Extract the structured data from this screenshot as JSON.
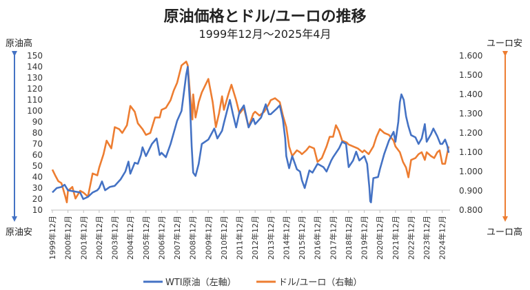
{
  "chart_data": {
    "type": "line",
    "title": "原油価格とドル/ユーロの推移",
    "subtitle": "1999年12月～2025年4月",
    "left_axis": {
      "top_label": "原油高",
      "bottom_label": "原油安",
      "ticks": [
        "10",
        "20",
        "30",
        "40",
        "50",
        "60",
        "70",
        "80",
        "90",
        "100",
        "110",
        "120",
        "130",
        "140",
        "150"
      ],
      "ylim": [
        10,
        150
      ],
      "arrow_color": "#4472C4"
    },
    "right_axis": {
      "top_label": "ユーロ安",
      "bottom_label": "ユーロ高",
      "ticks": [
        "0.800",
        "0.900",
        "1.000",
        "1.100",
        "1.200",
        "1.300",
        "1.400",
        "1.500",
        "1.600"
      ],
      "ylim": [
        0.8,
        1.6
      ],
      "arrow_color": "#ED7D31"
    },
    "x_ticks": [
      "1999年12月",
      "2000年12月",
      "2001年12月",
      "2002年12月",
      "2003年12月",
      "2004年12月",
      "2005年12月",
      "2006年12月",
      "2007年12月",
      "2008年12月",
      "2009年12月",
      "2010年12月",
      "2011年12月",
      "2012年12月",
      "2013年12月",
      "2014年12月",
      "2015年12月",
      "2016年12月",
      "2017年12月",
      "2018年12月",
      "2019年12月",
      "2020年12月",
      "2021年12月",
      "2022年12月",
      "2023年12月",
      "2024年12月"
    ],
    "grid": false,
    "legend_position": "bottom",
    "series": [
      {
        "name": "WTI原油（左軸）",
        "axis": "left",
        "color": "#4472C4",
        "points": [
          [
            1999.92,
            26
          ],
          [
            2000.2,
            30
          ],
          [
            2000.5,
            31
          ],
          [
            2000.7,
            33
          ],
          [
            2000.92,
            28
          ],
          [
            2001.3,
            27
          ],
          [
            2001.7,
            26
          ],
          [
            2001.9,
            20
          ],
          [
            2002.2,
            22
          ],
          [
            2002.5,
            26
          ],
          [
            2002.8,
            28
          ],
          [
            2002.92,
            30
          ],
          [
            2003.1,
            36
          ],
          [
            2003.3,
            28
          ],
          [
            2003.6,
            31
          ],
          [
            2003.92,
            32
          ],
          [
            2004.3,
            38
          ],
          [
            2004.6,
            45
          ],
          [
            2004.8,
            54
          ],
          [
            2004.92,
            43
          ],
          [
            2005.2,
            53
          ],
          [
            2005.4,
            52
          ],
          [
            2005.6,
            60
          ],
          [
            2005.7,
            67
          ],
          [
            2005.92,
            59
          ],
          [
            2006.3,
            70
          ],
          [
            2006.6,
            75
          ],
          [
            2006.8,
            60
          ],
          [
            2006.92,
            62
          ],
          [
            2007.2,
            58
          ],
          [
            2007.5,
            70
          ],
          [
            2007.8,
            85
          ],
          [
            2007.92,
            91
          ],
          [
            2008.2,
            100
          ],
          [
            2008.5,
            133
          ],
          [
            2008.6,
            140
          ],
          [
            2008.75,
            104
          ],
          [
            2008.85,
            68
          ],
          [
            2008.95,
            44
          ],
          [
            2009.1,
            41
          ],
          [
            2009.3,
            52
          ],
          [
            2009.5,
            70
          ],
          [
            2009.92,
            74
          ],
          [
            2010.3,
            84
          ],
          [
            2010.5,
            75
          ],
          [
            2010.8,
            82
          ],
          [
            2010.92,
            89
          ],
          [
            2011.3,
            110
          ],
          [
            2011.5,
            97
          ],
          [
            2011.7,
            85
          ],
          [
            2011.92,
            99
          ],
          [
            2012.2,
            105
          ],
          [
            2012.5,
            85
          ],
          [
            2012.8,
            93
          ],
          [
            2012.92,
            88
          ],
          [
            2013.3,
            94
          ],
          [
            2013.6,
            106
          ],
          [
            2013.8,
            97
          ],
          [
            2013.92,
            97
          ],
          [
            2014.3,
            102
          ],
          [
            2014.5,
            105
          ],
          [
            2014.7,
            92
          ],
          [
            2014.85,
            75
          ],
          [
            2014.92,
            59
          ],
          [
            2015.1,
            48
          ],
          [
            2015.3,
            59
          ],
          [
            2015.6,
            47
          ],
          [
            2015.8,
            45
          ],
          [
            2015.92,
            37
          ],
          [
            2016.1,
            30
          ],
          [
            2016.4,
            46
          ],
          [
            2016.6,
            44
          ],
          [
            2016.92,
            52
          ],
          [
            2017.3,
            49
          ],
          [
            2017.5,
            45
          ],
          [
            2017.8,
            55
          ],
          [
            2017.92,
            58
          ],
          [
            2018.3,
            66
          ],
          [
            2018.5,
            72
          ],
          [
            2018.75,
            70
          ],
          [
            2018.85,
            57
          ],
          [
            2018.92,
            49
          ],
          [
            2019.2,
            55
          ],
          [
            2019.4,
            63
          ],
          [
            2019.6,
            55
          ],
          [
            2019.92,
            59
          ],
          [
            2020.1,
            52
          ],
          [
            2020.25,
            30
          ],
          [
            2020.3,
            18
          ],
          [
            2020.35,
            17
          ],
          [
            2020.5,
            39
          ],
          [
            2020.8,
            40
          ],
          [
            2020.92,
            47
          ],
          [
            2021.2,
            61
          ],
          [
            2021.5,
            73
          ],
          [
            2021.8,
            81
          ],
          [
            2021.92,
            72
          ],
          [
            2022.1,
            90
          ],
          [
            2022.2,
            108
          ],
          [
            2022.3,
            115
          ],
          [
            2022.45,
            110
          ],
          [
            2022.6,
            95
          ],
          [
            2022.75,
            86
          ],
          [
            2022.92,
            78
          ],
          [
            2023.2,
            76
          ],
          [
            2023.4,
            70
          ],
          [
            2023.6,
            75
          ],
          [
            2023.8,
            88
          ],
          [
            2023.92,
            72
          ],
          [
            2024.2,
            79
          ],
          [
            2024.35,
            84
          ],
          [
            2024.6,
            77
          ],
          [
            2024.8,
            70
          ],
          [
            2024.92,
            70
          ],
          [
            2025.1,
            74
          ],
          [
            2025.25,
            68
          ],
          [
            2025.33,
            62
          ]
        ]
      },
      {
        "name": "ドル/ユーロ（右軸）",
        "axis": "right",
        "color": "#ED7D31",
        "points": [
          [
            1999.92,
            1.01
          ],
          [
            2000.1,
            0.98
          ],
          [
            2000.3,
            0.95
          ],
          [
            2000.5,
            0.94
          ],
          [
            2000.75,
            0.87
          ],
          [
            2000.85,
            0.84
          ],
          [
            2000.92,
            0.9
          ],
          [
            2001.2,
            0.92
          ],
          [
            2001.4,
            0.86
          ],
          [
            2001.7,
            0.9
          ],
          [
            2001.92,
            0.89
          ],
          [
            2002.2,
            0.87
          ],
          [
            2002.5,
            0.99
          ],
          [
            2002.8,
            0.98
          ],
          [
            2002.92,
            1.02
          ],
          [
            2003.2,
            1.09
          ],
          [
            2003.4,
            1.16
          ],
          [
            2003.7,
            1.12
          ],
          [
            2003.92,
            1.23
          ],
          [
            2004.2,
            1.22
          ],
          [
            2004.4,
            1.2
          ],
          [
            2004.7,
            1.24
          ],
          [
            2004.92,
            1.34
          ],
          [
            2005.2,
            1.31
          ],
          [
            2005.4,
            1.25
          ],
          [
            2005.7,
            1.22
          ],
          [
            2005.92,
            1.19
          ],
          [
            2006.2,
            1.2
          ],
          [
            2006.5,
            1.28
          ],
          [
            2006.8,
            1.28
          ],
          [
            2006.92,
            1.32
          ],
          [
            2007.2,
            1.33
          ],
          [
            2007.5,
            1.37
          ],
          [
            2007.7,
            1.42
          ],
          [
            2007.92,
            1.46
          ],
          [
            2008.2,
            1.55
          ],
          [
            2008.5,
            1.57
          ],
          [
            2008.6,
            1.55
          ],
          [
            2008.75,
            1.4
          ],
          [
            2008.9,
            1.27
          ],
          [
            2008.95,
            1.4
          ],
          [
            2009.1,
            1.28
          ],
          [
            2009.3,
            1.36
          ],
          [
            2009.5,
            1.41
          ],
          [
            2009.92,
            1.48
          ],
          [
            2010.2,
            1.36
          ],
          [
            2010.4,
            1.23
          ],
          [
            2010.6,
            1.3
          ],
          [
            2010.8,
            1.39
          ],
          [
            2010.92,
            1.32
          ],
          [
            2011.2,
            1.4
          ],
          [
            2011.4,
            1.45
          ],
          [
            2011.7,
            1.37
          ],
          [
            2011.92,
            1.3
          ],
          [
            2012.2,
            1.33
          ],
          [
            2012.5,
            1.23
          ],
          [
            2012.8,
            1.3
          ],
          [
            2012.92,
            1.31
          ],
          [
            2013.2,
            1.29
          ],
          [
            2013.5,
            1.31
          ],
          [
            2013.8,
            1.35
          ],
          [
            2013.92,
            1.37
          ],
          [
            2014.2,
            1.38
          ],
          [
            2014.5,
            1.36
          ],
          [
            2014.7,
            1.29
          ],
          [
            2014.85,
            1.25
          ],
          [
            2014.92,
            1.23
          ],
          [
            2015.1,
            1.13
          ],
          [
            2015.3,
            1.08
          ],
          [
            2015.6,
            1.11
          ],
          [
            2015.8,
            1.1
          ],
          [
            2015.92,
            1.09
          ],
          [
            2016.2,
            1.11
          ],
          [
            2016.4,
            1.13
          ],
          [
            2016.7,
            1.12
          ],
          [
            2016.92,
            1.05
          ],
          [
            2017.2,
            1.07
          ],
          [
            2017.5,
            1.13
          ],
          [
            2017.7,
            1.18
          ],
          [
            2017.92,
            1.18
          ],
          [
            2018.1,
            1.24
          ],
          [
            2018.3,
            1.21
          ],
          [
            2018.5,
            1.16
          ],
          [
            2018.8,
            1.15
          ],
          [
            2018.92,
            1.14
          ],
          [
            2019.2,
            1.13
          ],
          [
            2019.5,
            1.12
          ],
          [
            2019.8,
            1.1
          ],
          [
            2019.92,
            1.11
          ],
          [
            2020.2,
            1.09
          ],
          [
            2020.5,
            1.13
          ],
          [
            2020.7,
            1.18
          ],
          [
            2020.92,
            1.22
          ],
          [
            2021.2,
            1.2
          ],
          [
            2021.5,
            1.19
          ],
          [
            2021.8,
            1.16
          ],
          [
            2021.92,
            1.13
          ],
          [
            2022.2,
            1.1
          ],
          [
            2022.4,
            1.05
          ],
          [
            2022.6,
            1.02
          ],
          [
            2022.75,
            0.97
          ],
          [
            2022.92,
            1.06
          ],
          [
            2023.2,
            1.07
          ],
          [
            2023.4,
            1.09
          ],
          [
            2023.6,
            1.1
          ],
          [
            2023.8,
            1.06
          ],
          [
            2023.92,
            1.1
          ],
          [
            2024.2,
            1.08
          ],
          [
            2024.4,
            1.07
          ],
          [
            2024.6,
            1.1
          ],
          [
            2024.75,
            1.11
          ],
          [
            2024.92,
            1.04
          ],
          [
            2025.1,
            1.04
          ],
          [
            2025.2,
            1.08
          ],
          [
            2025.33,
            1.13
          ]
        ]
      }
    ]
  }
}
